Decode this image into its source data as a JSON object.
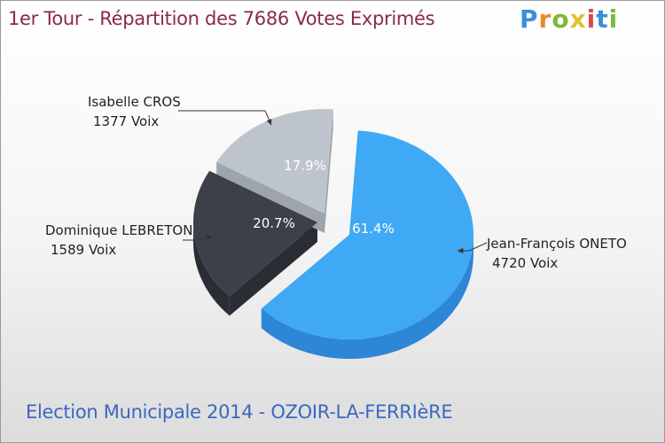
{
  "title": "1er Tour - Répartition des 7686 Votes Exprimés",
  "subtitle": "Election Municipale 2014 - OZOIR-LA-FERRIèRE",
  "logo": [
    "P",
    "r",
    "o",
    "x",
    "i",
    "t",
    "i"
  ],
  "chart_data": {
    "type": "pie",
    "title": "1er Tour - Répartition des 7686 Votes Exprimés",
    "total": 7686,
    "slices": [
      {
        "name": "Jean-François ONETO",
        "votes_label": "4720 Voix",
        "value": 4720,
        "pct_label": "61.4%",
        "color": "#3fa9f5",
        "side": "#2e86d6",
        "text_color": "#ffffff"
      },
      {
        "name": "Dominique LEBRETON",
        "votes_label": "1589 Voix",
        "value": 1589,
        "pct_label": "20.7%",
        "color": "#3c4048",
        "side": "#2a2d33",
        "text_color": "#ffffff"
      },
      {
        "name": "Isabelle CROS",
        "votes_label": "1377 Voix",
        "value": 1377,
        "pct_label": "17.9%",
        "color": "#bec4cb",
        "side": "#9ea4ab",
        "text_color": "#ffffff"
      }
    ]
  }
}
